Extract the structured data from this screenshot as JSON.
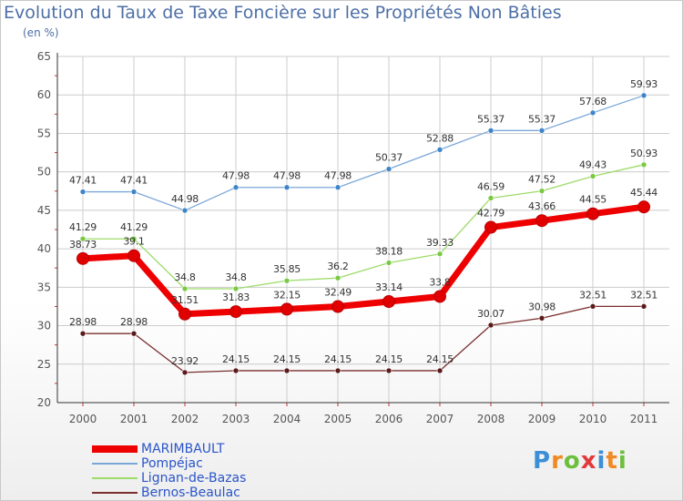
{
  "chart_data": {
    "type": "line",
    "title": "Evolution du Taux de Taxe Foncière sur les Propriétés Non Bâties",
    "subtitle": "(en %)",
    "xlabel": "",
    "ylabel": "",
    "categories": [
      "2000",
      "2001",
      "2002",
      "2003",
      "2004",
      "2005",
      "2006",
      "2007",
      "2008",
      "2009",
      "2010",
      "2011"
    ],
    "ylim": [
      20,
      65
    ],
    "yticks": [
      20,
      25,
      30,
      35,
      40,
      45,
      50,
      55,
      60,
      65
    ],
    "grid": true,
    "legend_position": "bottom-left",
    "series": [
      {
        "name": "MARIMBAULT",
        "color": "#ee0000",
        "point_color": "#e00000",
        "label_color": "#333333",
        "emphasis": true,
        "values": [
          38.73,
          39.1,
          31.51,
          31.83,
          32.15,
          32.49,
          33.14,
          33.8,
          42.79,
          43.66,
          44.55,
          45.44
        ],
        "labels": [
          "38.73",
          "39.1",
          "31.51",
          "31.83",
          "32.15",
          "32.49",
          "33.14",
          "33.8",
          "42.79",
          "43.66",
          "44.55",
          "45.44"
        ]
      },
      {
        "name": "Pompéjac",
        "color": "#7aa7d9",
        "point_color": "#3d85c8",
        "label_color": "#333333",
        "emphasis": false,
        "values": [
          47.41,
          47.41,
          44.98,
          47.98,
          47.98,
          47.98,
          50.37,
          52.88,
          55.37,
          55.37,
          57.68,
          59.93
        ],
        "labels": [
          "47.41",
          "47.41",
          "44.98",
          "47.98",
          "47.98",
          "47.98",
          "50.37",
          "52.88",
          "55.37",
          "55.37",
          "57.68",
          "59.93"
        ]
      },
      {
        "name": "Lignan-de-Bazas",
        "color": "#9edb6a",
        "point_color": "#7ac943",
        "label_color": "#333333",
        "emphasis": false,
        "values": [
          41.29,
          41.29,
          34.8,
          34.8,
          35.85,
          36.2,
          38.18,
          39.33,
          46.59,
          47.52,
          49.43,
          50.93
        ],
        "labels": [
          "41.29",
          "41.29",
          "34.8",
          "34.8",
          "35.85",
          "36.2",
          "38.18",
          "39.33",
          "46.59",
          "47.52",
          "49.43",
          "50.93"
        ]
      },
      {
        "name": "Bernos-Beaulac",
        "color": "#7b2e2e",
        "point_color": "#5a1a1a",
        "label_color": "#333333",
        "emphasis": false,
        "values": [
          28.98,
          28.98,
          23.92,
          24.15,
          24.15,
          24.15,
          24.15,
          24.15,
          30.07,
          30.98,
          32.51,
          32.51
        ],
        "labels": [
          "28.98",
          "28.98",
          "23.92",
          "24.15",
          "24.15",
          "24.15",
          "24.15",
          "24.15",
          "30.07",
          "30.98",
          "32.51",
          "32.51"
        ]
      }
    ]
  },
  "legend": [
    {
      "label": "MARIMBAULT",
      "color": "#ee0000",
      "text_color": "#2a55c8"
    },
    {
      "label": "Pompéjac",
      "color": "#7aa7d9",
      "text_color": "#2a55c8"
    },
    {
      "label": "Lignan-de-Bazas",
      "color": "#9edb6a",
      "text_color": "#2a55c8"
    },
    {
      "label": "Bernos-Beaulac",
      "color": "#7b2e2e",
      "text_color": "#2a55c8"
    }
  ],
  "logo": {
    "letters": [
      "P",
      "r",
      "o",
      "x",
      "i",
      "t",
      "i"
    ],
    "colors": [
      "#3a8fd6",
      "#f08a24",
      "#6cbf3c",
      "#e23a3a",
      "#3a8fd6",
      "#f08a24",
      "#6cbf3c"
    ]
  }
}
